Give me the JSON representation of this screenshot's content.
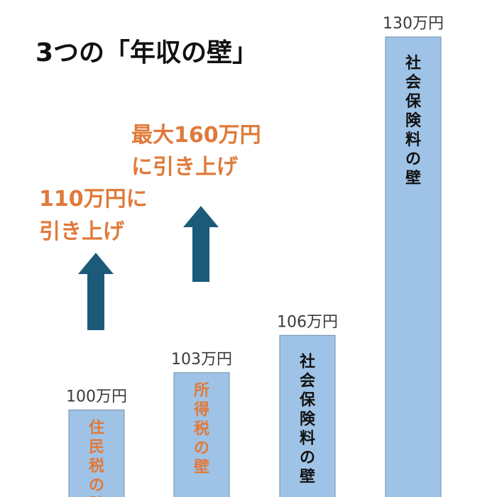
{
  "title": "3つの「年収の壁」",
  "colors": {
    "bar_fill": "#9fc3e6",
    "bar_stroke": "#7f9bb5",
    "accent_orange": "#e07a3a",
    "arrow_fill": "#1c5a7a",
    "text_dark": "#111111"
  },
  "annotations": [
    {
      "line1": "110万円に",
      "line2": "引き上げ",
      "icon": "arrow-up-icon"
    },
    {
      "line1": "最大160万円",
      "line2": "に引き上げ",
      "icon": "arrow-up-icon"
    }
  ],
  "chart_data": {
    "type": "bar",
    "title": "3つの「年収の壁」",
    "unit": "万円",
    "categories": [
      "住民税の壁",
      "所得税の壁",
      "社会保険料の壁",
      "社会保険料の壁"
    ],
    "values": [
      100,
      103,
      106,
      130
    ],
    "value_labels": [
      "100万円",
      "103万円",
      "106万円",
      "130万円"
    ],
    "label_colors": [
      "#e07a3a",
      "#e07a3a",
      "#111111",
      "#111111"
    ],
    "baseline": 93,
    "ymax": 130,
    "grid": false,
    "legend": "none"
  }
}
